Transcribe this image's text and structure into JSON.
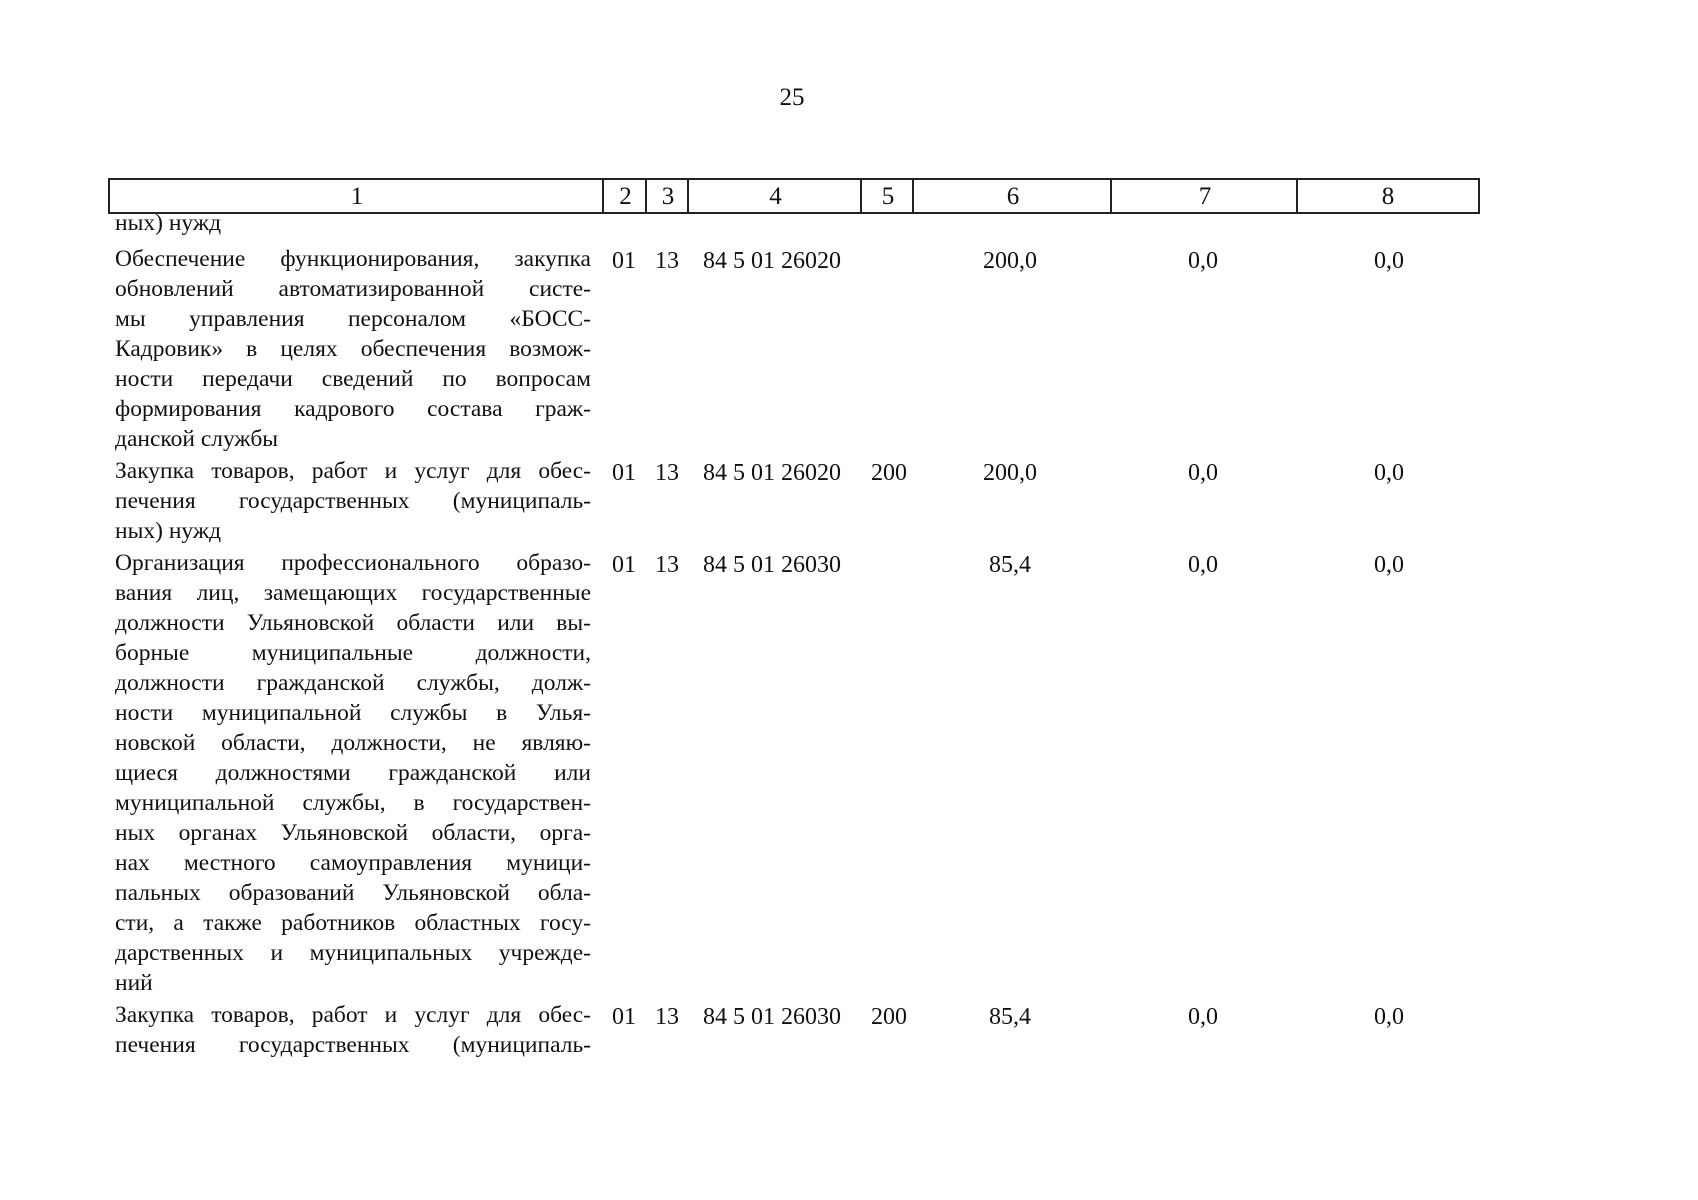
{
  "page_number": "25",
  "table": {
    "headers": [
      "1",
      "2",
      "3",
      "4",
      "5",
      "6",
      "7",
      "8"
    ],
    "continuation": [
      "ных) нужд"
    ],
    "rows": [
      {
        "lines": [
          "Обеспечение функционирования, закупка",
          "обновлений автоматизированной систе-",
          "мы управления персоналом «БОСС-",
          "Кадровик» в целях обеспечения возмож-",
          "ности передачи сведений по вопросам",
          "формирования кадрового состава граж-",
          "данской службы"
        ],
        "c2": "01",
        "c3": "13",
        "c4": "84 5 01 26020",
        "c5": "",
        "c6": "200,0",
        "c7": "0,0",
        "c8": "0,0"
      },
      {
        "lines": [
          "Закупка товаров, работ и услуг для обес-",
          "печения государственных (муниципаль-",
          "ных) нужд"
        ],
        "c2": "01",
        "c3": "13",
        "c4": "84 5 01 26020",
        "c5": "200",
        "c6": "200,0",
        "c7": "0,0",
        "c8": "0,0"
      },
      {
        "lines": [
          "Организация профессионального образо-",
          "вания лиц, замещающих государственные",
          "должности Ульяновской области или вы-",
          "борные муниципальные должности,",
          "должности гражданской службы, долж-",
          "ности муниципальной службы в Улья-",
          "новской области, должности, не являю-",
          "щиеся должностями гражданской или",
          "муниципальной службы, в государствен-",
          "ных органах Ульяновской области, орга-",
          "нах местного самоуправления муници-",
          "пальных образований Ульяновской обла-",
          "сти, а также работников областных госу-",
          "дарственных и муниципальных учрежде-",
          "ний"
        ],
        "c2": "01",
        "c3": "13",
        "c4": "84 5 01 26030",
        "c5": "",
        "c6": "85,4",
        "c7": "0,0",
        "c8": "0,0"
      },
      {
        "lines": [
          "Закупка товаров, работ и услуг для обес-",
          "печения государственных (муниципаль-"
        ],
        "c2": "01",
        "c3": "13",
        "c4": "84 5 01 26030",
        "c5": "200",
        "c6": "85,4",
        "c7": "0,0",
        "c8": "0,0",
        "continues": true
      }
    ]
  }
}
